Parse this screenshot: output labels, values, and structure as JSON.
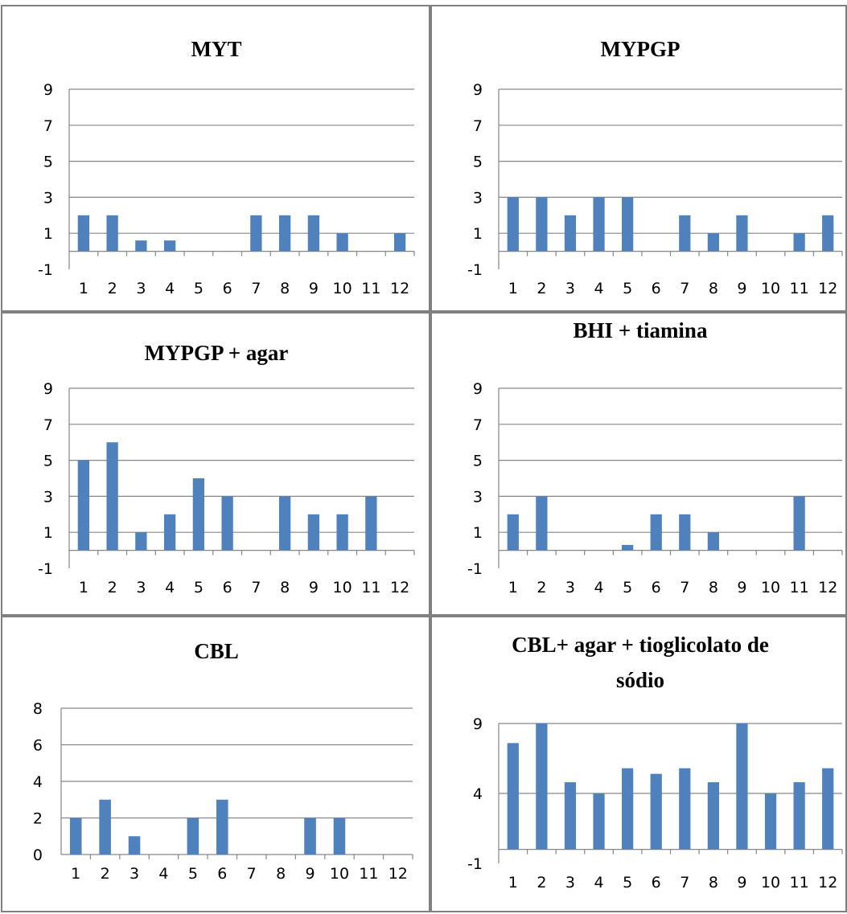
{
  "colors": {
    "bar": "#4F81BD",
    "grid": "#868686",
    "axis": "#868686",
    "border": "#808080"
  },
  "chart_data": [
    {
      "type": "bar",
      "title": [
        "MYT"
      ],
      "categories": [
        "1",
        "2",
        "3",
        "4",
        "5",
        "6",
        "7",
        "8",
        "9",
        "10",
        "11",
        "12"
      ],
      "values": [
        2,
        2,
        0.6,
        0.6,
        0,
        0,
        2,
        2,
        2,
        1,
        0,
        1
      ],
      "yticks": [
        -1,
        1,
        3,
        5,
        7,
        9
      ],
      "ylim": [
        -1,
        9
      ],
      "grid": true,
      "legend": "none"
    },
    {
      "type": "bar",
      "title": [
        "MYPGP"
      ],
      "categories": [
        "1",
        "2",
        "3",
        "4",
        "5",
        "6",
        "7",
        "8",
        "9",
        "10",
        "11",
        "12"
      ],
      "values": [
        3,
        3,
        2,
        3,
        3,
        0,
        2,
        1,
        2,
        0,
        1,
        2
      ],
      "yticks": [
        -1,
        1,
        3,
        5,
        7,
        9
      ],
      "ylim": [
        -1,
        9
      ],
      "grid": true,
      "legend": "none"
    },
    {
      "type": "bar",
      "title": [
        "MYPGP + agar"
      ],
      "categories": [
        "1",
        "2",
        "3",
        "4",
        "5",
        "6",
        "7",
        "8",
        "9",
        "10",
        "11",
        "12"
      ],
      "values": [
        5,
        6,
        1,
        2,
        4,
        3,
        0,
        3,
        2,
        2,
        3,
        0
      ],
      "yticks": [
        -1,
        1,
        3,
        5,
        7,
        9
      ],
      "ylim": [
        -1,
        9
      ],
      "grid": true,
      "legend": "none"
    },
    {
      "type": "bar",
      "title": [
        "BHI + tiamina"
      ],
      "categories": [
        "1",
        "2",
        "3",
        "4",
        "5",
        "6",
        "7",
        "8",
        "9",
        "10",
        "11",
        "12"
      ],
      "values": [
        2,
        3,
        0,
        0,
        0.3,
        2,
        2,
        1,
        0,
        0,
        3,
        0
      ],
      "yticks": [
        -1,
        1,
        3,
        5,
        7,
        9
      ],
      "ylim": [
        -1,
        9
      ],
      "grid": true,
      "legend": "none"
    },
    {
      "type": "bar",
      "title": [
        "CBL"
      ],
      "categories": [
        "1",
        "2",
        "3",
        "4",
        "5",
        "6",
        "7",
        "8",
        "9",
        "10",
        "11",
        "12"
      ],
      "values": [
        2,
        3,
        1,
        0,
        2,
        3,
        0,
        0,
        2,
        2,
        0,
        0
      ],
      "yticks": [
        0,
        2,
        4,
        6,
        8
      ],
      "ylim": [
        0,
        8
      ],
      "grid": true,
      "legend": "none"
    },
    {
      "type": "bar",
      "title": [
        "CBL+ agar + tioglicolato de",
        "sódio"
      ],
      "categories": [
        "1",
        "2",
        "3",
        "4",
        "5",
        "6",
        "7",
        "8",
        "9",
        "10",
        "11",
        "12"
      ],
      "values": [
        7.6,
        9,
        4.8,
        4,
        5.8,
        5.4,
        5.8,
        4.8,
        9,
        4,
        4.8,
        5.8
      ],
      "yticks": [
        -1,
        4,
        9
      ],
      "ylim": [
        -1,
        9
      ],
      "grid": true,
      "legend": "none"
    }
  ]
}
